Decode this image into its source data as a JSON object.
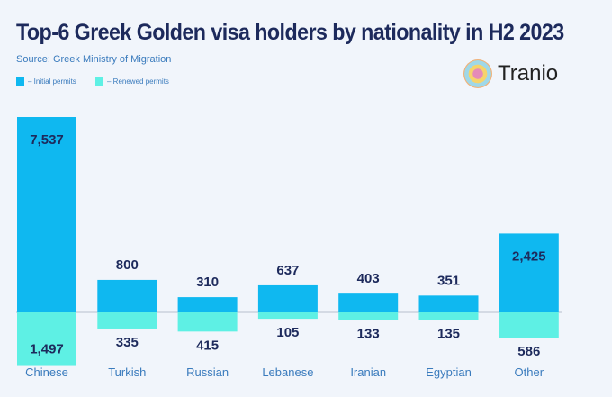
{
  "title": "Top-6 Greek Golden visa holders by nationality in H2 2023",
  "source": "Source: Greek Ministry of Migration",
  "brand": "Tranio",
  "chart_data": {
    "type": "bar",
    "title": "Top-6 Greek Golden visa holders by nationality in H2 2023",
    "categories": [
      "Chinese",
      "Turkish",
      "Russian",
      "Lebanese",
      "Iranian",
      "Egyptian",
      "Other"
    ],
    "series": [
      {
        "name": "– Initial permits",
        "color": "#0fb8f0",
        "values": [
          7537,
          800,
          310,
          637,
          403,
          351,
          2425
        ],
        "labels": [
          "7,537",
          "800",
          "310",
          "637",
          "403",
          "351",
          "2,425"
        ]
      },
      {
        "name": "– Renewed permits",
        "color": "#5ef0e4",
        "values": [
          1497,
          335,
          415,
          105,
          133,
          135,
          586
        ],
        "labels": [
          "1,497",
          "335",
          "415",
          "105",
          "133",
          "135",
          "586"
        ]
      }
    ],
    "legend": "top-left",
    "grid": false
  }
}
